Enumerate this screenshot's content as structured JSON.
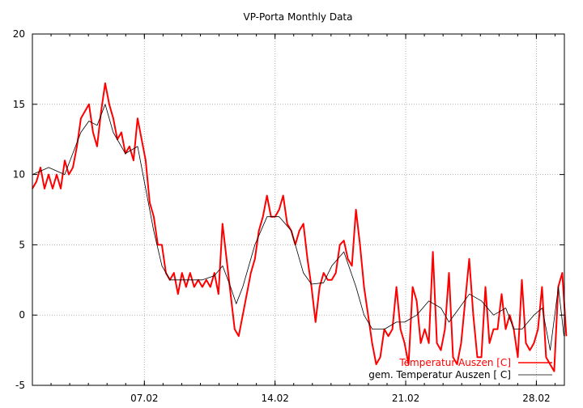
{
  "chart_data": {
    "type": "line",
    "title": "VP-Porta Monthly Data",
    "xlabel": "",
    "ylabel": "",
    "xlim": [
      1.0,
      29.5
    ],
    "ylim": [
      -5,
      20
    ],
    "grid": true,
    "legend_position": "bottom-right",
    "y_ticks": [
      {
        "value": 20,
        "label": "20"
      },
      {
        "value": 15,
        "label": "15"
      },
      {
        "value": 10,
        "label": "10"
      },
      {
        "value": 5,
        "label": "5"
      },
      {
        "value": 0,
        "label": "0"
      },
      {
        "value": -5,
        "label": "-5"
      }
    ],
    "x_ticks": [
      {
        "value": 7,
        "label": "07.02"
      },
      {
        "value": 14,
        "label": "14.02"
      },
      {
        "value": 21,
        "label": "21.02"
      },
      {
        "value": 28,
        "label": "28.02"
      }
    ],
    "series": [
      {
        "name": "Temperatur Auszen [C]",
        "color": "#ff0000",
        "x_start": 1.0,
        "x_step": 0.2167,
        "values": [
          9,
          9.5,
          10.5,
          9,
          10,
          9,
          10,
          9,
          11,
          10,
          10.5,
          12,
          14,
          14.5,
          15,
          13,
          12,
          14.5,
          16.5,
          15,
          14,
          12.5,
          13,
          11.5,
          12,
          11,
          14,
          12.5,
          11,
          8,
          7,
          5,
          5,
          3,
          2.5,
          3,
          1.5,
          3,
          2,
          3,
          2,
          2.5,
          2,
          2.5,
          2,
          3,
          1.5,
          6.5,
          4,
          1.5,
          -1,
          -1.5,
          0,
          1.5,
          3,
          4,
          6,
          7,
          8.5,
          7,
          7,
          7.5,
          8.5,
          6.5,
          6,
          5,
          6,
          6.5,
          4,
          2,
          -0.5,
          2,
          3,
          2.5,
          2.5,
          3,
          5,
          5.3,
          4,
          3.5,
          7.5,
          5,
          2,
          0,
          -2,
          -3.5,
          -3,
          -1,
          -1.5,
          -1,
          2,
          -1,
          -2,
          -3.5,
          2,
          1,
          -2,
          -1,
          -2,
          4.5,
          -2,
          -2.5,
          -1,
          3,
          -3,
          -3.5,
          -2,
          1,
          4,
          0,
          -3,
          -3,
          2,
          -2,
          -1,
          -1,
          1.5,
          -1,
          0,
          -1,
          -3,
          2.5,
          -2,
          -2.5,
          -2,
          -1,
          2,
          -3,
          -3.5,
          -4,
          2,
          3,
          -1.5
        ]
      },
      {
        "name": "gem. Temperatur Auszen [ C]",
        "color": "#000000",
        "points": [
          [
            1.0,
            10
          ],
          [
            1.87,
            10.5
          ],
          [
            2.73,
            10
          ],
          [
            3.6,
            13
          ],
          [
            4.03,
            13.8
          ],
          [
            4.47,
            13.5
          ],
          [
            4.9,
            15
          ],
          [
            5.33,
            13
          ],
          [
            5.98,
            11.5
          ],
          [
            6.64,
            12
          ],
          [
            7.07,
            9
          ],
          [
            7.5,
            6
          ],
          [
            7.94,
            3.5
          ],
          [
            8.37,
            2.5
          ],
          [
            9.24,
            2.5
          ],
          [
            10.1,
            2.5
          ],
          [
            10.75,
            2.8
          ],
          [
            11.19,
            3.5
          ],
          [
            11.62,
            2
          ],
          [
            11.92,
            0.8
          ],
          [
            12.27,
            2
          ],
          [
            12.92,
            5
          ],
          [
            13.57,
            7
          ],
          [
            14.22,
            7
          ],
          [
            14.87,
            6
          ],
          [
            15.52,
            3
          ],
          [
            15.95,
            2.2
          ],
          [
            16.6,
            2.3
          ],
          [
            17.04,
            3.5
          ],
          [
            17.69,
            4.5
          ],
          [
            18.34,
            2
          ],
          [
            18.77,
            0
          ],
          [
            19.21,
            -1
          ],
          [
            19.86,
            -1
          ],
          [
            20.5,
            -0.5
          ],
          [
            20.94,
            -0.5
          ],
          [
            21.59,
            0
          ],
          [
            22.24,
            1
          ],
          [
            22.89,
            0.5
          ],
          [
            23.32,
            -0.5
          ],
          [
            23.76,
            0.3
          ],
          [
            24.41,
            1.5
          ],
          [
            25.06,
            1
          ],
          [
            25.71,
            0
          ],
          [
            26.36,
            0.5
          ],
          [
            26.79,
            -1
          ],
          [
            27.23,
            -1
          ],
          [
            27.87,
            0
          ],
          [
            28.31,
            0.5
          ],
          [
            28.74,
            -2.5
          ],
          [
            29.18,
            2
          ],
          [
            29.48,
            -1.5
          ]
        ]
      }
    ]
  }
}
